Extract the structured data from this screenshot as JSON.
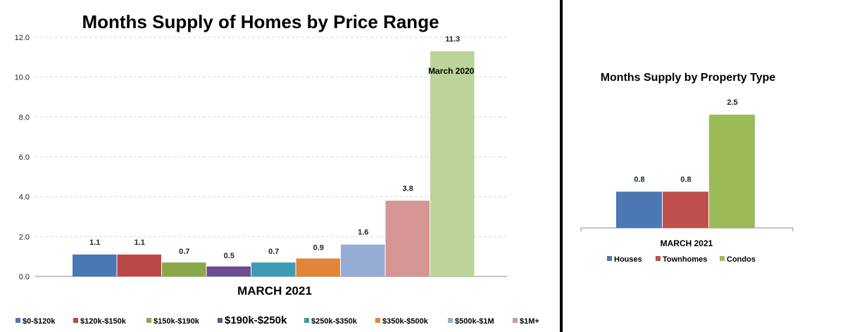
{
  "chart_data": [
    {
      "type": "bar",
      "title": "Months Supply of Homes by Price Range",
      "categories": [
        "MARCH 2021"
      ],
      "ylim": [
        0,
        12
      ],
      "yticks": [
        "0.0",
        "2.0",
        "4.0",
        "6.0",
        "8.0",
        "10.0",
        "12.0"
      ],
      "grid": true,
      "legend_position": "bottom",
      "annotation": "March 2020",
      "series": [
        {
          "name": "$0-$120k",
          "color": "#4a78b5",
          "values": [
            1.1
          ],
          "label": "1.1"
        },
        {
          "name": "$120k-$150k",
          "color": "#b94846",
          "values": [
            1.1
          ],
          "label": "1.1"
        },
        {
          "name": "$150k-$190k",
          "color": "#8aa84a",
          "values": [
            0.7
          ],
          "label": "0.7"
        },
        {
          "name": "$190k-$250k",
          "color": "#6b4d91",
          "values": [
            0.5
          ],
          "label": "0.5"
        },
        {
          "name": "$250k-$350k",
          "color": "#3f9bb3",
          "values": [
            0.7
          ],
          "label": "0.7"
        },
        {
          "name": "$350k-$500k",
          "color": "#e1853b",
          "values": [
            0.9
          ],
          "label": "0.9"
        },
        {
          "name": "$500k-$1M",
          "color": "#95add4",
          "values": [
            1.6
          ],
          "label": "1.6"
        },
        {
          "name": "$1M+",
          "color": "#d49594",
          "values": [
            3.8
          ],
          "label": "3.8"
        },
        {
          "name": "",
          "color": "#bcd39a",
          "values": [
            11.3
          ],
          "label": "11.3"
        }
      ]
    },
    {
      "type": "bar",
      "title": "Months Supply by Property Type",
      "categories": [
        "MARCH 2021"
      ],
      "legend_position": "bottom",
      "series": [
        {
          "name": "Houses",
          "color": "#4a78b5",
          "values": [
            0.8
          ],
          "label": "0.8"
        },
        {
          "name": "Townhomes",
          "color": "#c0504d",
          "values": [
            0.8
          ],
          "label": "0.8"
        },
        {
          "name": "Condos",
          "color": "#9bbb59",
          "values": [
            2.5
          ],
          "label": "2.5"
        }
      ]
    }
  ]
}
